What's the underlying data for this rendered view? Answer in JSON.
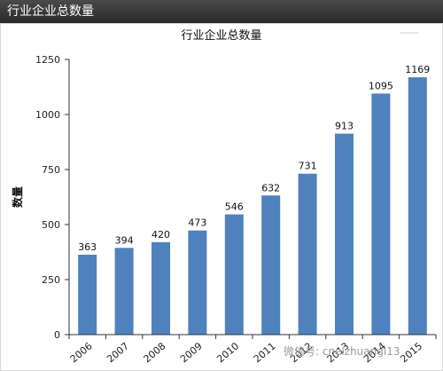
{
  "header": {
    "title": "行业企业总数量"
  },
  "watermark": {
    "text": "微信号: cnelzhuangl13"
  },
  "colors": {
    "bar": "#4f81bd",
    "header_bg": "#333333",
    "axis": "#333333",
    "grid": "#d9d9d9"
  },
  "chart_data": {
    "type": "bar",
    "title": "行业企业总数量",
    "xlabel": "",
    "ylabel": "数量",
    "categories": [
      "2006",
      "2007",
      "2008",
      "2009",
      "2010",
      "2011",
      "2012",
      "2013",
      "2014",
      "2015"
    ],
    "values": [
      363,
      394,
      420,
      473,
      546,
      632,
      731,
      913,
      1095,
      1169
    ],
    "ylim": [
      0,
      1250
    ],
    "yticks": [
      0,
      250,
      500,
      750,
      1000,
      1250
    ],
    "ytick_labels": [
      "0",
      "250",
      "500",
      "750",
      "1000",
      "1250"
    ],
    "grid": false,
    "legend": "none"
  }
}
